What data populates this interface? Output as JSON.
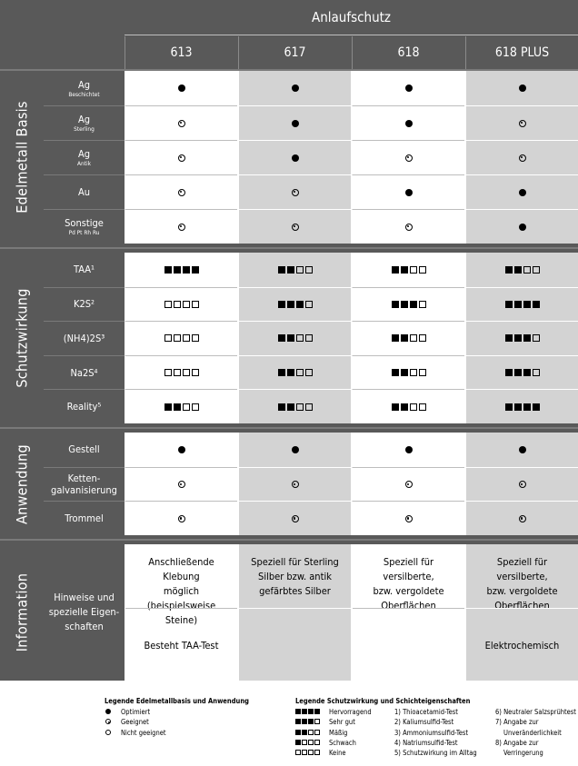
{
  "header": {
    "title": "Anlaufschutz",
    "columns": [
      "613",
      "617",
      "618",
      "618 PLUS"
    ]
  },
  "sections": {
    "edelmetall": {
      "label": "Edelmetall Basis",
      "rows": [
        {
          "label": "Ag",
          "sub": "Beschichtet",
          "values": [
            "dot",
            "dot",
            "dot",
            "dot"
          ]
        },
        {
          "label": "Ag",
          "sub": "Sterling",
          "values": [
            "ring",
            "dot",
            "dot",
            "ring"
          ]
        },
        {
          "label": "Ag",
          "sub": "Antik",
          "values": [
            "ring",
            "dot",
            "ring",
            "ring"
          ]
        },
        {
          "label": "Au",
          "sub": "",
          "values": [
            "ring",
            "ring",
            "dot",
            "dot"
          ]
        },
        {
          "label": "Sonstige",
          "sub": "Pd Pt Rh Ru",
          "values": [
            "ring",
            "ring",
            "ring",
            "dot"
          ]
        }
      ]
    },
    "schutzwirkung": {
      "label": "Schutzwirkung",
      "rows": [
        {
          "label": "TAA¹",
          "values": [
            4,
            2,
            2,
            2
          ]
        },
        {
          "label": "K2S²",
          "values": [
            0,
            3,
            3,
            4
          ]
        },
        {
          "label": "(NH4)2S³",
          "values": [
            0,
            2,
            2,
            3
          ]
        },
        {
          "label": "Na2S⁴",
          "values": [
            0,
            2,
            2,
            3
          ]
        },
        {
          "label": "Reality⁵",
          "values": [
            2,
            2,
            2,
            4
          ]
        }
      ]
    },
    "anwendung": {
      "label": "Anwendung",
      "rows": [
        {
          "label": "Gestell",
          "values": [
            "dot",
            "dot",
            "dot",
            "dot"
          ]
        },
        {
          "label": "Ketten-\ngalvanisierung",
          "values": [
            "ring",
            "ring",
            "ring",
            "ring"
          ]
        },
        {
          "label": "Trommel",
          "values": [
            "ring",
            "ring",
            "ring",
            "ring"
          ]
        }
      ]
    },
    "information": {
      "label": "Information",
      "row_label": "Hinweise und\nspezielle Eigen-\nschaften",
      "top": [
        "Anschließende Klebung\nmöglich (beispielsweise\nSteine)",
        "Speziell für Sterling\nSilber bzw. antik\ngefärbtes Silber",
        "Speziell für versilberte,\nbzw. vergoldete\nOberflächen",
        "Speziell für versilberte,\nbzw. vergoldete\nOberflächen"
      ],
      "bottom": [
        "Besteht TAA-Test",
        "",
        "",
        "Elektrochemisch"
      ]
    }
  },
  "legend": {
    "basis_title": "Legende Edelmetallbasis und Anwendung",
    "basis_items": [
      {
        "symbol": "dot",
        "text": "Optimiert"
      },
      {
        "symbol": "ring",
        "text": "Geeignet"
      },
      {
        "symbol": "open",
        "text": "Nicht geeignet"
      }
    ],
    "schutz_title": "Legende Schutzwirkung und Schichteigenschaften",
    "schutz_items": [
      {
        "level": 4,
        "text": "Hervorragend"
      },
      {
        "level": 3,
        "text": "Sehr gut"
      },
      {
        "level": 2,
        "text": "Mäßig"
      },
      {
        "level": 1,
        "text": "Schwach"
      },
      {
        "level": 0,
        "text": "Keine"
      }
    ],
    "tests_col1": [
      "1) Thioacetamid-Test",
      "2) Kaliumsulfid-Test",
      "3) Ammoniumsulfid-Test",
      "4) Natriumsulfid-Test",
      "5) Schutzwirkung im Alltag"
    ],
    "tests_col2": [
      "6) Neutraler Salzsprühtest",
      "7) Angabe zur",
      "Unveränderlichkeit",
      "8) Angabe zur",
      "Verringerung"
    ]
  }
}
